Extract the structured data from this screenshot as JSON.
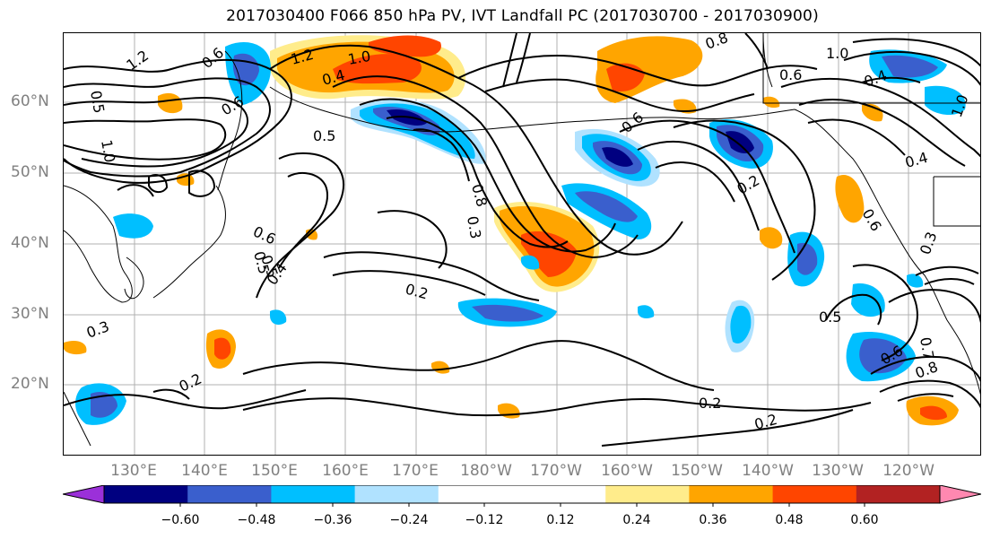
{
  "title": "2017030400 F066 850 hPa PV, IVT Landfall PC (2017030700 - 2017030900)",
  "lat_labels": [
    "60°N",
    "50°N",
    "40°N",
    "30°N",
    "20°N"
  ],
  "lon_labels": [
    "130°E",
    "140°E",
    "150°E",
    "160°E",
    "170°E",
    "180°W",
    "170°W",
    "160°W",
    "150°W",
    "140°W",
    "130°W",
    "120°W"
  ],
  "contour_labels": [
    "1.2",
    "0.6",
    "1.0",
    "0.5",
    "1.2",
    "1.0",
    "0.4",
    "0.5",
    "0.6",
    "0.5",
    "0.8",
    "0.3",
    "0.6",
    "0.5",
    "0.4",
    "0.2",
    "0.3",
    "0.2",
    "0.2",
    "0.2",
    "0.5",
    "0.6",
    "0.7",
    "0.8",
    "0.6",
    "0.3",
    "0.4",
    "1.0",
    "0.4",
    "0.2",
    "0.8",
    "1.0",
    "0.6",
    "0.6"
  ],
  "colorbar": {
    "colors": [
      "#9b30d9",
      "#000080",
      "#3a5fcd",
      "#00bfff",
      "#b0e2ff",
      "#ffffff",
      "#ffffff",
      "#ffec8b",
      "#ffa500",
      "#ff4500",
      "#b22222",
      "#ff88b0"
    ],
    "tick_labels": [
      "−0.60",
      "−0.48",
      "−0.36",
      "−0.24",
      "−0.12",
      "0.12",
      "0.24",
      "0.36",
      "0.48",
      "0.60"
    ]
  }
}
